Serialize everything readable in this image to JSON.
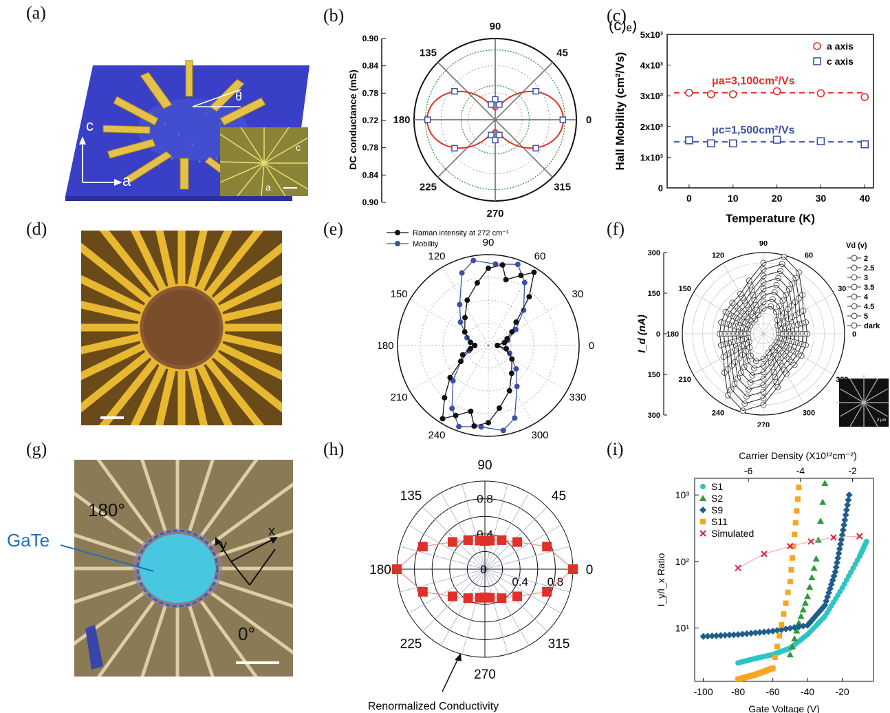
{
  "panel_labels": [
    "(a)",
    "(b)",
    "(c)",
    "(d)",
    "(e)",
    "(f)",
    "(g)",
    "(h)",
    "(i)"
  ],
  "colors": {
    "red": "#e0302a",
    "blue": "#3c4fa8",
    "green": "#2e9a3a",
    "black": "#111111",
    "orange": "#f5a623",
    "teal": "#2ec4c4",
    "navy": "#1f5d8c",
    "pink_red": "#d81e3a",
    "gold": "#e8b830"
  },
  "panel_a": {
    "axis_c": "c",
    "axis_a": "a",
    "theta": "θ",
    "inset_c": "c",
    "inset_a": "a"
  },
  "panel_g": {
    "label_gate": "GaTe",
    "label_180": "180°",
    "label_0": "0°",
    "axis_x": "x",
    "axis_y": "y"
  },
  "chart_data": [
    {
      "id": "b",
      "type": "scatter",
      "polar": true,
      "ylabel": "DC conductance (mS)",
      "radial_ticks": [
        "0.90",
        "0.84",
        "0.78",
        "0.72",
        "0.78",
        "0.84",
        "0.90"
      ],
      "angle_labels": [
        "90",
        "45",
        "0",
        "315",
        "270",
        "225",
        "180",
        "135"
      ],
      "series": [
        {
          "values": [
            [
              0,
              0.87
            ],
            [
              35,
              0.83
            ],
            [
              75,
              0.755
            ],
            [
              90,
              0.765
            ],
            [
              105,
              0.755
            ],
            [
              145,
              0.83
            ],
            [
              180,
              0.87
            ],
            [
              215,
              0.83
            ],
            [
              255,
              0.755
            ],
            [
              270,
              0.765
            ],
            [
              285,
              0.755
            ],
            [
              325,
              0.83
            ]
          ]
        }
      ]
    },
    {
      "id": "c",
      "type": "scatter",
      "xlabel": "Temperature (K)",
      "ylabel": "Hall Mobility (cm²/Vs)",
      "xticks": [
        "0",
        "10",
        "20",
        "30",
        "40"
      ],
      "yticks": [
        "0",
        "1x10³",
        "2x10³",
        "3x10³",
        "4x10³",
        "5x10³"
      ],
      "xlim": [
        -5,
        42
      ],
      "ylim": [
        0,
        5000
      ],
      "corner_text": "(c)ₑ)",
      "series": [
        {
          "name": "a axis",
          "annotation": "μa=3,100cm²/Vs",
          "x": [
            0,
            5,
            10,
            20,
            30,
            40
          ],
          "values": [
            3100,
            3050,
            3050,
            3150,
            3080,
            2960
          ]
        },
        {
          "name": "c axis",
          "annotation": "μc=1,500cm²/Vs",
          "x": [
            0,
            5,
            10,
            20,
            30,
            40
          ],
          "values": [
            1550,
            1450,
            1450,
            1570,
            1520,
            1420
          ]
        }
      ]
    },
    {
      "id": "e",
      "type": "line",
      "polar": true,
      "angle_labels": [
        "90",
        "60",
        "30",
        "0",
        "330",
        "300",
        "270",
        "240",
        "210",
        "180",
        "150",
        "120"
      ],
      "series": [
        {
          "name": "Raman intensity at 272 cm⁻¹",
          "values": [
            [
              0,
              0.1
            ],
            [
              10,
              0.18
            ],
            [
              20,
              0.22
            ],
            [
              30,
              0.3
            ],
            [
              40,
              0.4
            ],
            [
              50,
              0.7
            ],
            [
              58,
              0.95
            ],
            [
              65,
              0.85
            ],
            [
              75,
              0.75
            ],
            [
              80,
              0.9
            ],
            [
              90,
              0.85
            ],
            [
              100,
              0.7
            ],
            [
              115,
              0.55
            ],
            [
              130,
              0.4
            ],
            [
              150,
              0.3
            ],
            [
              170,
              0.2
            ],
            [
              180,
              0.15
            ],
            [
              190,
              0.2
            ],
            [
              200,
              0.3
            ],
            [
              210,
              0.35
            ],
            [
              220,
              0.55
            ],
            [
              230,
              0.75
            ],
            [
              238,
              0.95
            ],
            [
              245,
              0.85
            ],
            [
              255,
              0.75
            ],
            [
              260,
              0.9
            ],
            [
              270,
              0.85
            ],
            [
              280,
              0.7
            ],
            [
              295,
              0.55
            ],
            [
              310,
              0.4
            ],
            [
              330,
              0.3
            ],
            [
              350,
              0.2
            ]
          ]
        },
        {
          "name": "Mobility",
          "values": [
            [
              0,
              0.1
            ],
            [
              15,
              0.22
            ],
            [
              30,
              0.35
            ],
            [
              45,
              0.55
            ],
            [
              60,
              0.8
            ],
            [
              70,
              0.95
            ],
            [
              85,
              0.9
            ],
            [
              100,
              0.95
            ],
            [
              110,
              0.85
            ],
            [
              125,
              0.55
            ],
            [
              140,
              0.4
            ],
            [
              160,
              0.25
            ],
            [
              180,
              0.15
            ],
            [
              195,
              0.22
            ],
            [
              210,
              0.35
            ],
            [
              225,
              0.55
            ],
            [
              240,
              0.8
            ],
            [
              250,
              0.95
            ],
            [
              265,
              0.9
            ],
            [
              280,
              0.95
            ],
            [
              290,
              0.85
            ],
            [
              305,
              0.55
            ],
            [
              320,
              0.4
            ],
            [
              340,
              0.25
            ]
          ]
        }
      ]
    },
    {
      "id": "f",
      "type": "line",
      "polar": true,
      "ylabel": "I_d (nA)",
      "radial_ticks": [
        "300",
        "150",
        "0",
        "150",
        "300"
      ],
      "angle_labels": [
        "90",
        "60",
        "30",
        "0",
        "330",
        "300",
        "270",
        "240",
        "210",
        "180",
        "150",
        "120"
      ],
      "legend_title": "Vd (v)",
      "legend": [
        "2",
        "2.5",
        "3",
        "3.5",
        "4",
        "4.5",
        "5",
        "dark"
      ],
      "inset_text": "2 μm"
    },
    {
      "id": "h",
      "type": "scatter",
      "polar": true,
      "xlabel": "Renormalized Conductivity",
      "radial_ticks": [
        "0.4",
        "0.8"
      ],
      "angle_labels": [
        "90",
        "45",
        "0",
        "315",
        "270",
        "225",
        "180",
        "135"
      ],
      "series": [
        {
          "values": [
            [
              0,
              1.0
            ],
            [
              20,
              0.75
            ],
            [
              40,
              0.48
            ],
            [
              60,
              0.38
            ],
            [
              80,
              0.33
            ],
            [
              90,
              0.32
            ],
            [
              100,
              0.33
            ],
            [
              120,
              0.38
            ],
            [
              140,
              0.48
            ],
            [
              160,
              0.75
            ],
            [
              180,
              1.0
            ],
            [
              200,
              0.75
            ],
            [
              220,
              0.48
            ],
            [
              240,
              0.38
            ],
            [
              260,
              0.33
            ],
            [
              270,
              0.32
            ],
            [
              280,
              0.33
            ],
            [
              300,
              0.38
            ],
            [
              320,
              0.48
            ],
            [
              340,
              0.75
            ]
          ]
        }
      ]
    },
    {
      "id": "i",
      "type": "scatter",
      "xlabel": "Gate Voltage (V)",
      "ylabel": "I_y/I_x  Ratio",
      "top_xlabel": "Carrier Density (X10¹²cm⁻²)",
      "xticks": [
        "-100",
        "-80",
        "-60",
        "-40",
        "-20"
      ],
      "top_xticks": [
        "-6",
        "-4",
        "-2"
      ],
      "yticks": [
        "10¹",
        "10²",
        "10³"
      ],
      "xlim": [
        -105,
        -2
      ],
      "ylim_log": [
        1.0,
        3.3
      ],
      "series": [
        {
          "name": "S1",
          "x": [
            -80,
            -70,
            -60,
            -50,
            -40,
            -30,
            -20,
            -10,
            -6
          ],
          "values": [
            3,
            3.5,
            4,
            5,
            8,
            15,
            40,
            120,
            200
          ]
        },
        {
          "name": "S2",
          "x": [
            -50,
            -45,
            -40,
            -35,
            -30
          ],
          "values": [
            4,
            12,
            30,
            110,
            1500
          ]
        },
        {
          "name": "S9",
          "x": [
            -100,
            -80,
            -60,
            -40,
            -30,
            -24,
            -20,
            -16
          ],
          "values": [
            7.5,
            8,
            9,
            11,
            22,
            70,
            250,
            1000
          ]
        },
        {
          "name": "S11",
          "x": [
            -80,
            -70,
            -60,
            -50,
            -45
          ],
          "values": [
            1.7,
            2,
            2.5,
            50,
            1300
          ]
        },
        {
          "name": "Simulated",
          "x": [
            -80,
            -65,
            -50,
            -38,
            -25,
            -10
          ],
          "values": [
            80,
            130,
            170,
            200,
            230,
            240
          ]
        }
      ]
    }
  ]
}
